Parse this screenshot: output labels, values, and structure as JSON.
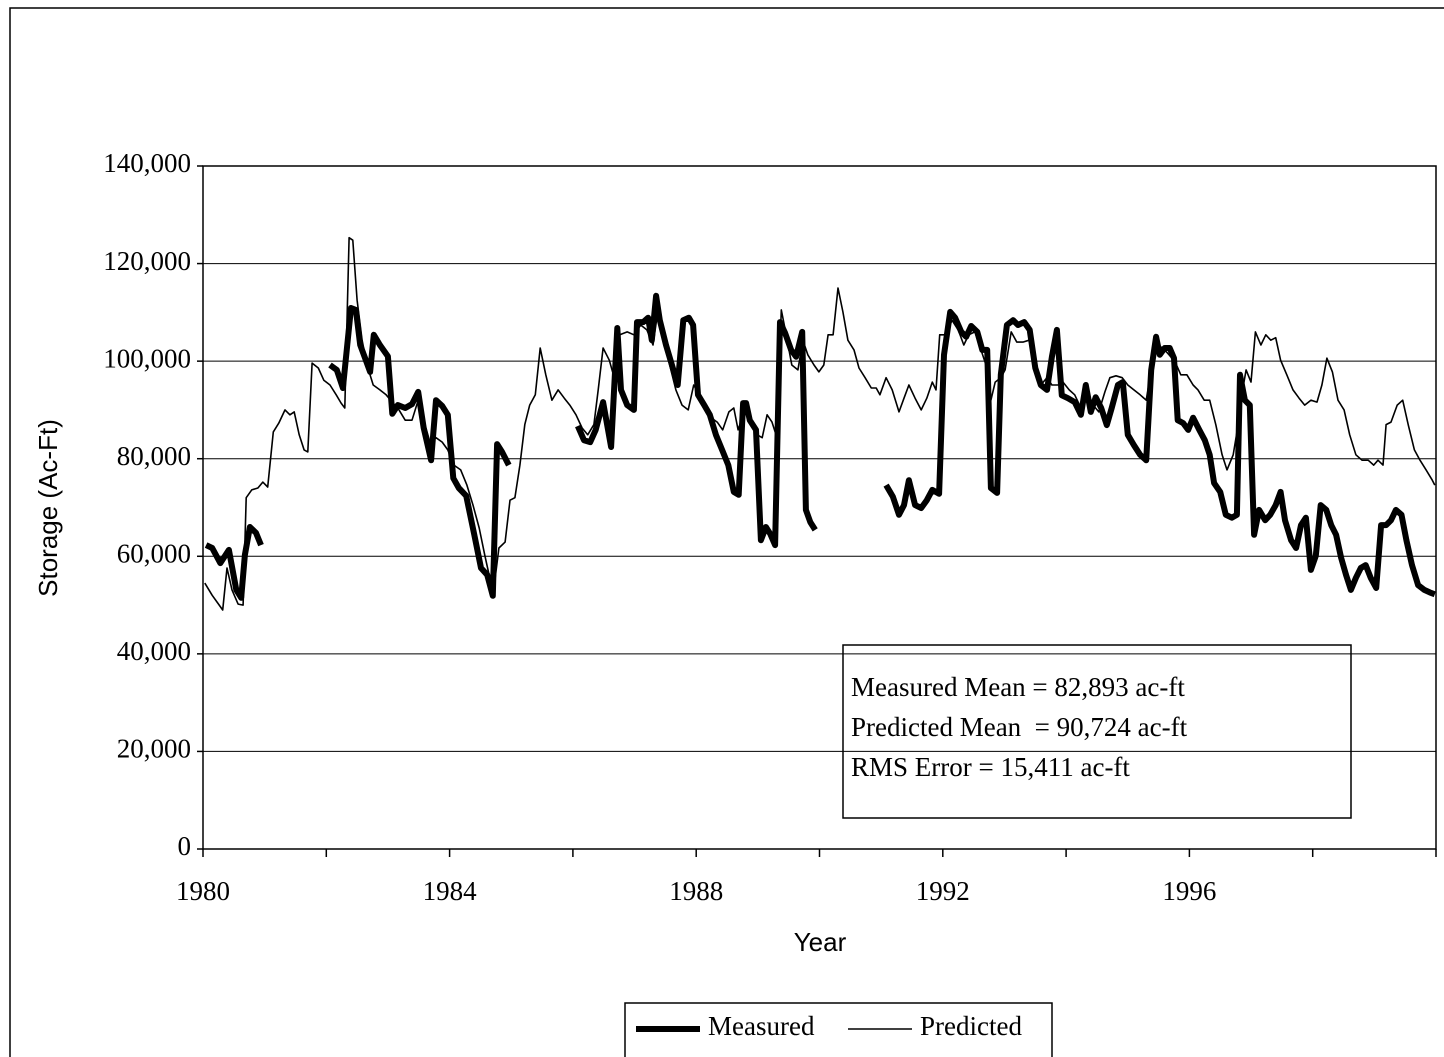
{
  "chart_data": {
    "type": "line",
    "xlabel": "Year",
    "ylabel": "Storage (Ac-Ft)",
    "xlim": [
      1980,
      2000
    ],
    "ylim": [
      0,
      140000
    ],
    "xticks": [
      1980,
      1984,
      1988,
      1992,
      1996
    ],
    "xminorticks": [
      1982,
      1986,
      1990,
      1994,
      1998,
      2000
    ],
    "yticks": [
      0,
      {
        "value": 20000,
        "label": "20,000"
      },
      {
        "value": 40000,
        "label": "40,000"
      },
      {
        "value": 60000,
        "label": "60,000"
      },
      {
        "value": 80000,
        "label": "80,000"
      },
      {
        "value": 100000,
        "label": "100,000"
      },
      {
        "value": 120000,
        "label": "120,000"
      },
      {
        "value": 140000,
        "label": "140,000"
      }
    ],
    "grid": true,
    "legend": "bottom",
    "annotations": [
      "Measured Mean = 82,893 ac-ft",
      "Predicted Mean  = 90,724 ac-ft",
      "RMS Error = 15,411 ac-ft"
    ],
    "series": [
      {
        "name": "Measured",
        "color": "#000000",
        "x": [
          1980.05,
          1980.15,
          1980.28,
          1980.42,
          1980.54,
          1980.62,
          1980.68,
          1980.76,
          1980.86,
          1980.94,
          null,
          1982.06,
          1982.17,
          1982.27,
          1982.4,
          1982.48,
          1982.55,
          1982.63,
          1982.71,
          1982.77,
          1982.87,
          1983.0,
          1983.07,
          1983.16,
          1983.28,
          1983.39,
          1983.49,
          1983.58,
          1983.7,
          1983.78,
          1983.88,
          1983.97,
          1984.06,
          1984.15,
          1984.27,
          1984.4,
          1984.51,
          1984.61,
          1984.7,
          1984.77,
          1984.85,
          1984.96,
          null,
          1986.08,
          1986.18,
          1986.28,
          1986.37,
          1986.49,
          1986.62,
          1986.72,
          1986.78,
          1986.88,
          1986.99,
          1987.04,
          1987.14,
          1987.22,
          1987.28,
          1987.35,
          1987.41,
          1987.51,
          1987.62,
          1987.7,
          1987.79,
          1987.88,
          1987.95,
          1988.03,
          1988.13,
          1988.22,
          1988.32,
          1988.42,
          1988.52,
          1988.61,
          1988.69,
          1988.76,
          1988.81,
          1988.87,
          1988.97,
          1989.05,
          1989.13,
          1989.2,
          1989.28,
          1989.36,
          1989.44,
          1989.54,
          1989.62,
          1989.72,
          1989.78,
          1989.85,
          1989.93,
          null,
          1991.08,
          1991.19,
          1991.29,
          1991.37,
          1991.45,
          1991.55,
          1991.65,
          1991.74,
          1991.83,
          1991.94,
          1992.02,
          1992.12,
          1992.2,
          1992.3,
          1992.38,
          1992.46,
          1992.56,
          1992.64,
          1992.72,
          1992.78,
          1992.88,
          1992.94,
          1993.04,
          1993.14,
          1993.22,
          1993.32,
          1993.41,
          1993.5,
          1993.59,
          1993.69,
          1993.77,
          1993.85,
          1993.93,
          1994.03,
          1994.14,
          1994.24,
          1994.32,
          1994.4,
          1994.48,
          1994.57,
          1994.66,
          1994.74,
          1994.84,
          1994.92,
          1995.0,
          1995.1,
          1995.2,
          1995.3,
          1995.38,
          1995.46,
          1995.52,
          1995.6,
          1995.68,
          1995.75,
          1995.81,
          1995.9,
          1995.98,
          1996.06,
          1996.16,
          1996.25,
          1996.33,
          1996.4,
          1996.5,
          1996.59,
          1996.69,
          1996.77,
          1996.82,
          1996.9,
          1996.98,
          1997.05,
          1997.13,
          1997.23,
          1997.31,
          1997.4,
          1997.48,
          1997.55,
          1997.65,
          1997.73,
          1997.81,
          1997.89,
          1997.97,
          1998.05,
          1998.13,
          1998.22,
          1998.3,
          1998.38,
          1998.46,
          1998.54,
          1998.62,
          1998.7,
          1998.78,
          1998.86,
          1998.94,
          1999.03,
          1999.11,
          1999.19,
          1999.27,
          1999.35,
          1999.44,
          1999.52,
          1999.61,
          1999.71,
          1999.81,
          1999.9,
          1999.98
        ],
        "values": [
          62300,
          61700,
          58600,
          61300,
          53100,
          51500,
          60300,
          66000,
          64800,
          62300,
          null,
          99200,
          98200,
          94500,
          110900,
          110500,
          103300,
          100600,
          97800,
          105400,
          103300,
          101000,
          89200,
          91000,
          90400,
          91200,
          93700,
          86300,
          79700,
          92000,
          90800,
          89000,
          76000,
          74000,
          72400,
          64400,
          57600,
          56200,
          51900,
          83000,
          81400,
          78700,
          null,
          86700,
          83800,
          83400,
          85900,
          91600,
          82400,
          106800,
          94100,
          91000,
          90000,
          108000,
          108000,
          108900,
          104300,
          113400,
          108400,
          103300,
          98600,
          95100,
          108400,
          108900,
          107400,
          93100,
          91000,
          89000,
          84900,
          81800,
          78700,
          73200,
          72600,
          91400,
          91400,
          87900,
          85900,
          63300,
          66000,
          64600,
          62300,
          108000,
          105800,
          102300,
          100900,
          106000,
          69500,
          67000,
          65400,
          null,
          74600,
          72200,
          68500,
          70500,
          75600,
          70500,
          69900,
          71500,
          73600,
          72800,
          101300,
          110100,
          108900,
          106000,
          105000,
          107200,
          106000,
          102300,
          102300,
          74000,
          73000,
          97200,
          107400,
          108400,
          107400,
          108000,
          106400,
          98600,
          95100,
          94100,
          100900,
          106400,
          93000,
          92400,
          91600,
          89000,
          95100,
          89600,
          92600,
          90400,
          86900,
          90400,
          95100,
          95700,
          84900,
          82800,
          80800,
          79700,
          98200,
          105000,
          101300,
          102700,
          102700,
          100600,
          87900,
          87300,
          85900,
          88400,
          85900,
          83800,
          80800,
          75000,
          73200,
          68500,
          67900,
          68500,
          97200,
          92000,
          91000,
          64400,
          69500,
          67400,
          68500,
          70500,
          73200,
          67400,
          63300,
          61700,
          66400,
          67900,
          57200,
          60100,
          70500,
          69500,
          66400,
          64400,
          59700,
          56200,
          53100,
          55600,
          57600,
          58200,
          55600,
          53500,
          66400,
          66400,
          67400,
          69500,
          68500,
          63300,
          58200,
          54100,
          53100,
          52600,
          52200
        ]
      },
      {
        "name": "Predicted",
        "color": "#000000",
        "x": [
          1980.03,
          1980.15,
          1980.24,
          1980.32,
          1980.39,
          1980.47,
          1980.57,
          1980.65,
          1980.7,
          1980.79,
          1980.89,
          1980.97,
          1981.05,
          1981.14,
          1981.23,
          1981.33,
          1981.41,
          1981.48,
          1981.56,
          1981.64,
          1981.7,
          1981.77,
          1981.87,
          1981.96,
          1982.06,
          1982.16,
          1982.24,
          1982.3,
          1982.37,
          1982.43,
          1982.5,
          1982.58,
          1982.66,
          1982.76,
          1982.87,
          1982.97,
          1983.07,
          1983.18,
          1983.28,
          1983.39,
          1983.49,
          1983.58,
          1983.68,
          1983.78,
          1983.88,
          1983.97,
          1984.07,
          1984.18,
          1984.28,
          1984.38,
          1984.48,
          1984.57,
          1984.67,
          1984.74,
          1984.8,
          1984.9,
          1984.98,
          1985.06,
          1985.14,
          1985.22,
          1985.3,
          1985.39,
          1985.47,
          1985.56,
          1985.66,
          1985.76,
          1985.86,
          1985.95,
          1986.05,
          1986.15,
          1986.24,
          1986.34,
          1986.41,
          1986.49,
          1986.59,
          1986.67,
          1986.76,
          1986.88,
          1986.99,
          1987.1,
          1987.2,
          1987.3,
          1987.38,
          1987.48,
          1987.57,
          1987.67,
          1987.77,
          1987.87,
          1987.96,
          1988.05,
          1988.14,
          1988.24,
          1988.34,
          1988.43,
          1988.53,
          1988.61,
          1988.68,
          1988.76,
          1988.84,
          1988.92,
          1988.99,
          1989.07,
          1989.15,
          1989.23,
          1989.31,
          1989.38,
          1989.46,
          1989.55,
          1989.65,
          1989.73,
          1989.81,
          1989.91,
          1989.99,
          1990.07,
          1990.14,
          1990.22,
          1990.3,
          1990.38,
          1990.46,
          1990.56,
          1990.64,
          1990.74,
          1990.84,
          1990.92,
          1990.98,
          1991.08,
          1991.18,
          1991.29,
          1991.37,
          1991.45,
          1991.55,
          1991.65,
          1991.74,
          1991.83,
          1991.89,
          1991.95,
          1992.05,
          1992.15,
          1992.25,
          1992.34,
          1992.42,
          1992.52,
          1992.62,
          1992.7,
          1992.78,
          1992.85,
          1992.94,
          1993.01,
          1993.11,
          1993.2,
          1993.3,
          1993.4,
          1993.5,
          1993.59,
          1993.69,
          1993.77,
          1993.87,
          1993.95,
          1994.05,
          1994.14,
          1994.24,
          1994.34,
          1994.44,
          1994.53,
          1994.63,
          1994.71,
          1994.81,
          1994.91,
          1995.0,
          1995.1,
          1995.2,
          1995.3,
          1995.38,
          1995.47,
          1995.57,
          1995.67,
          1995.77,
          1995.86,
          1995.96,
          1996.06,
          1996.14,
          1996.24,
          1996.33,
          1996.43,
          1996.53,
          1996.61,
          1996.71,
          1996.79,
          1996.85,
          1996.92,
          1997.0,
          1997.07,
          1997.16,
          1997.24,
          1997.32,
          1997.4,
          1997.48,
          1997.58,
          1997.68,
          1997.78,
          1997.87,
          1997.97,
          1998.07,
          1998.15,
          1998.23,
          1998.32,
          1998.41,
          1998.51,
          1998.6,
          1998.7,
          1998.8,
          1998.9,
          1998.99,
          1999.06,
          1999.14,
          1999.19,
          1999.27,
          1999.37,
          1999.46,
          1999.55,
          1999.65,
          1999.74,
          1999.84,
          1999.94,
          1999.98
        ],
        "values": [
          54500,
          52000,
          50400,
          49000,
          57600,
          53100,
          50200,
          50000,
          72000,
          73600,
          74000,
          75200,
          74200,
          85500,
          87300,
          90000,
          89000,
          89600,
          84900,
          81800,
          81400,
          99600,
          98600,
          96100,
          95100,
          93100,
          91400,
          90400,
          125300,
          124800,
          112500,
          104300,
          99200,
          95100,
          94100,
          93100,
          91600,
          90000,
          87900,
          87900,
          92000,
          87900,
          83400,
          84300,
          83400,
          81800,
          78700,
          77700,
          74600,
          70500,
          65800,
          60300,
          54500,
          55600,
          61700,
          62900,
          71500,
          72000,
          78700,
          87000,
          91000,
          93100,
          102700,
          97200,
          92000,
          94100,
          92400,
          91000,
          89000,
          86300,
          84900,
          87000,
          94100,
          102700,
          100200,
          96600,
          105400,
          106000,
          105400,
          107400,
          106400,
          103300,
          110500,
          104800,
          99200,
          94100,
          91000,
          90000,
          95100,
          93100,
          90000,
          88400,
          87500,
          85900,
          89600,
          90400,
          85900,
          89000,
          90400,
          86900,
          84900,
          84300,
          89000,
          87500,
          84300,
          110500,
          105400,
          99200,
          98200,
          104300,
          101300,
          99200,
          97800,
          99200,
          105400,
          105400,
          115000,
          110100,
          104300,
          102300,
          98600,
          96600,
          94500,
          94500,
          93100,
          96600,
          94100,
          89600,
          92400,
          95100,
          92400,
          90000,
          92400,
          95700,
          94100,
          105400,
          105400,
          108400,
          106400,
          103300,
          105400,
          106000,
          102300,
          99200,
          92000,
          95700,
          96600,
          98200,
          106000,
          103900,
          103900,
          104300,
          100600,
          95100,
          96600,
          95100,
          95100,
          95700,
          94100,
          93100,
          90400,
          93700,
          91000,
          89600,
          93700,
          96600,
          97000,
          96600,
          95100,
          94100,
          93100,
          92000,
          98200,
          103300,
          102700,
          101300,
          99800,
          97200,
          97200,
          95100,
          94100,
          92000,
          92000,
          86900,
          80800,
          77700,
          80800,
          86900,
          93100,
          98200,
          95700,
          106000,
          103300,
          105400,
          104300,
          104800,
          100200,
          97200,
          94100,
          92400,
          91000,
          92000,
          91600,
          95100,
          100600,
          97800,
          92000,
          90000,
          84900,
          80800,
          79700,
          79700,
          78700,
          79700,
          78700,
          87000,
          87500,
          91000,
          92000,
          86900,
          81800,
          79700,
          77700,
          75600,
          74600
        ]
      }
    ]
  }
}
